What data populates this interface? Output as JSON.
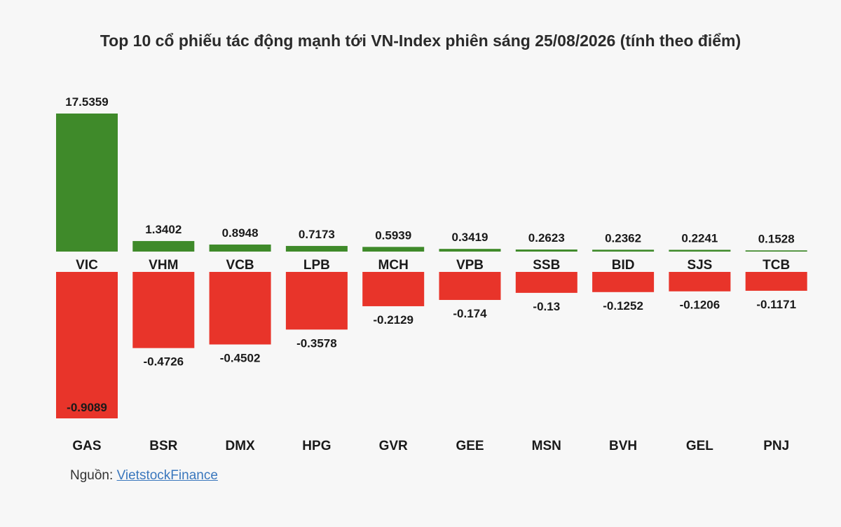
{
  "chart_data": {
    "type": "bar",
    "title": "Top 10 cổ phiếu tác động mạnh tới VN-Index phiên sáng 25/08/2026 (tính theo điểm)",
    "series": [
      {
        "categories": [
          "VIC",
          "VHM",
          "VCB",
          "LPB",
          "MCH",
          "VPB",
          "SSB",
          "BID",
          "SJS",
          "TCB"
        ],
        "values": [
          17.5359,
          1.3402,
          0.8948,
          0.7173,
          0.5939,
          0.3419,
          0.2623,
          0.2362,
          0.2241,
          0.1528
        ],
        "color": "#3f8a2a"
      },
      {
        "categories": [
          "GAS",
          "BSR",
          "DMX",
          "HPG",
          "GVR",
          "GEE",
          "MSN",
          "BVH",
          "GEL",
          "PNJ"
        ],
        "values": [
          -0.9089,
          -0.4726,
          -0.4502,
          -0.3578,
          -0.2129,
          -0.174,
          -0.13,
          -0.1252,
          -0.1206,
          -0.1171
        ],
        "color": "#e8342a"
      }
    ],
    "legend": "none",
    "grid": false
  },
  "source": {
    "label": "Nguồn:",
    "link": "VietstockFinance"
  }
}
